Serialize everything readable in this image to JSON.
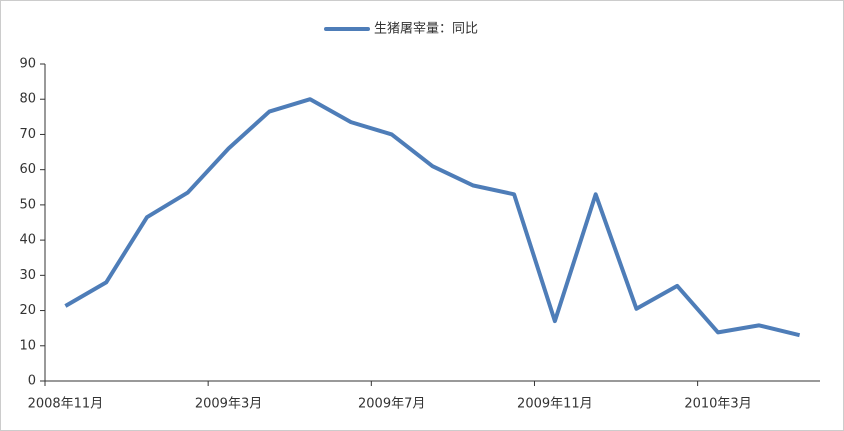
{
  "chart_data": {
    "type": "line",
    "categories": [
      "2008年11月",
      null,
      null,
      null,
      "2009年3月",
      null,
      null,
      null,
      "2009年7月",
      null,
      null,
      null,
      "2009年11月",
      null,
      null,
      null,
      "2010年3月",
      null,
      null
    ],
    "series": [
      {
        "name": "生猪屠宰量：同比",
        "color": "#4e7db8",
        "values": [
          21.3,
          28,
          46.5,
          53.5,
          66,
          76.5,
          80,
          73.5,
          70,
          61,
          55.5,
          53,
          17,
          53,
          20.5,
          27,
          13.8,
          15.8,
          13
        ]
      }
    ],
    "ylim": [
      0,
      90
    ],
    "yticks": [
      0,
      10,
      20,
      30,
      40,
      50,
      60,
      70,
      80,
      90
    ],
    "grid": false,
    "legend": "top"
  }
}
